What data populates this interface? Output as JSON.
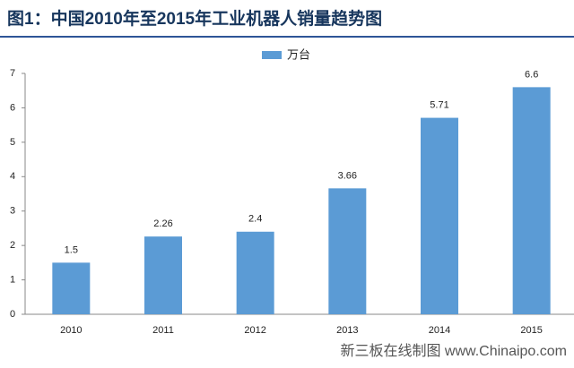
{
  "chart_data": {
    "type": "bar",
    "title": "图1：中国2010年至2015年工业机器人销量趋势图",
    "categories": [
      "2010",
      "2011",
      "2012",
      "2013",
      "2014",
      "2015"
    ],
    "series": [
      {
        "name": "万台",
        "color": "#5b9bd5",
        "values": [
          1.5,
          2.26,
          2.4,
          3.66,
          5.71,
          6.6
        ]
      }
    ],
    "ylim": [
      0,
      7
    ],
    "yticks": [
      0,
      1,
      2,
      3,
      4,
      5,
      6,
      7
    ],
    "legend": "top",
    "source": "新三板在线制图 www.Chinaipo.com"
  }
}
